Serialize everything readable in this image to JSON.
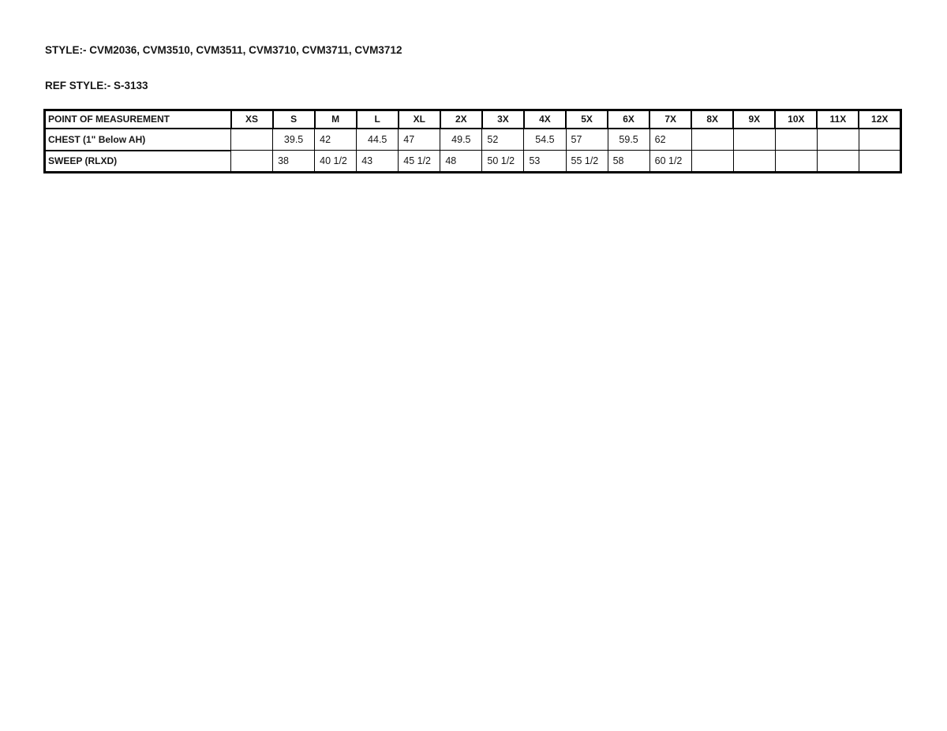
{
  "page": {
    "style_heading": "STYLE:- CVM2036, CVM3510, CVM3511, CVM3710, CVM3711, CVM3712",
    "ref_style_heading": "REF STYLE:- S-3133"
  },
  "table": {
    "header": [
      "POINT OF MEASUREMENT",
      "XS",
      "S",
      "M",
      "L",
      "XL",
      "2X",
      "3X",
      "4X",
      "5X",
      "6X",
      "7X",
      "8X",
      "9X",
      "10X",
      "11X",
      "12X"
    ],
    "rows": [
      {
        "label": "CHEST (1\" Below AH)",
        "values": [
          "",
          "39.5",
          "42",
          "44.5",
          "47",
          "49.5",
          "52",
          "54.5",
          "57",
          "59.5",
          "62",
          "",
          "",
          "",
          "",
          ""
        ]
      },
      {
        "label": "SWEEP (RLXD)",
        "values": [
          "",
          "38",
          "40 1/2",
          "43",
          "45 1/2",
          "48",
          "50 1/2",
          "53",
          "55 1/2",
          "58",
          "60 1/2",
          "",
          "",
          "",
          "",
          ""
        ]
      }
    ]
  }
}
